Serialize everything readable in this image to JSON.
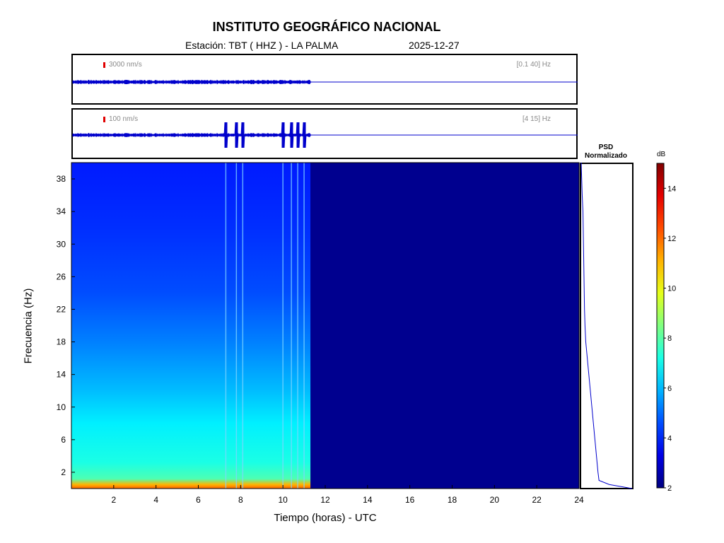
{
  "header": {
    "title": "INSTITUTO GEOGRÁFICO NACIONAL",
    "station": "Estación:  TBT ( HHZ ) - LA PALMA",
    "date": "2025-12-27"
  },
  "traces": [
    {
      "scale": "3000 nm/s",
      "band": "[0.1 40] Hz"
    },
    {
      "scale": "100 nm/s",
      "band": "[4 15] Hz"
    }
  ],
  "psd": {
    "title_line1": "PSD",
    "title_line2": "Normalizado"
  },
  "colors": {
    "low": "#00008f",
    "high": "#800000",
    "trace": "#0000cc",
    "scale_mark": "#e00000"
  },
  "chart_data": {
    "type": "heatmap",
    "xlabel": "Tiempo (horas) - UTC",
    "ylabel": "Frecuencia  (Hz)",
    "xlim": [
      0,
      24
    ],
    "ylim": [
      0,
      40
    ],
    "xticks": [
      "2",
      "4",
      "6",
      "8",
      "10",
      "12",
      "14",
      "16",
      "18",
      "20",
      "22",
      "24"
    ],
    "yticks": [
      "2",
      "6",
      "10",
      "14",
      "18",
      "22",
      "26",
      "30",
      "34",
      "38"
    ],
    "data_end_hour": 11.3,
    "event_lines_hours": [
      7.3,
      7.8,
      8.1,
      10.0,
      10.4,
      10.7,
      11.0
    ],
    "colorbar": {
      "label": "dB",
      "min": 2,
      "max": 15,
      "ticks": [
        "2",
        "4",
        "6",
        "8",
        "10",
        "12",
        "14"
      ]
    },
    "psd_profile": {
      "freq_hz": [
        0,
        0.5,
        1,
        2,
        4,
        6,
        8,
        10,
        12,
        14,
        16,
        18,
        20,
        22,
        24,
        26,
        28,
        30,
        32,
        34,
        36,
        38,
        40
      ],
      "normalized": [
        1.0,
        0.55,
        0.35,
        0.33,
        0.3,
        0.27,
        0.24,
        0.21,
        0.18,
        0.15,
        0.12,
        0.09,
        0.075,
        0.065,
        0.06,
        0.055,
        0.05,
        0.045,
        0.04,
        0.035,
        0.02,
        0.01,
        0.0
      ]
    }
  }
}
